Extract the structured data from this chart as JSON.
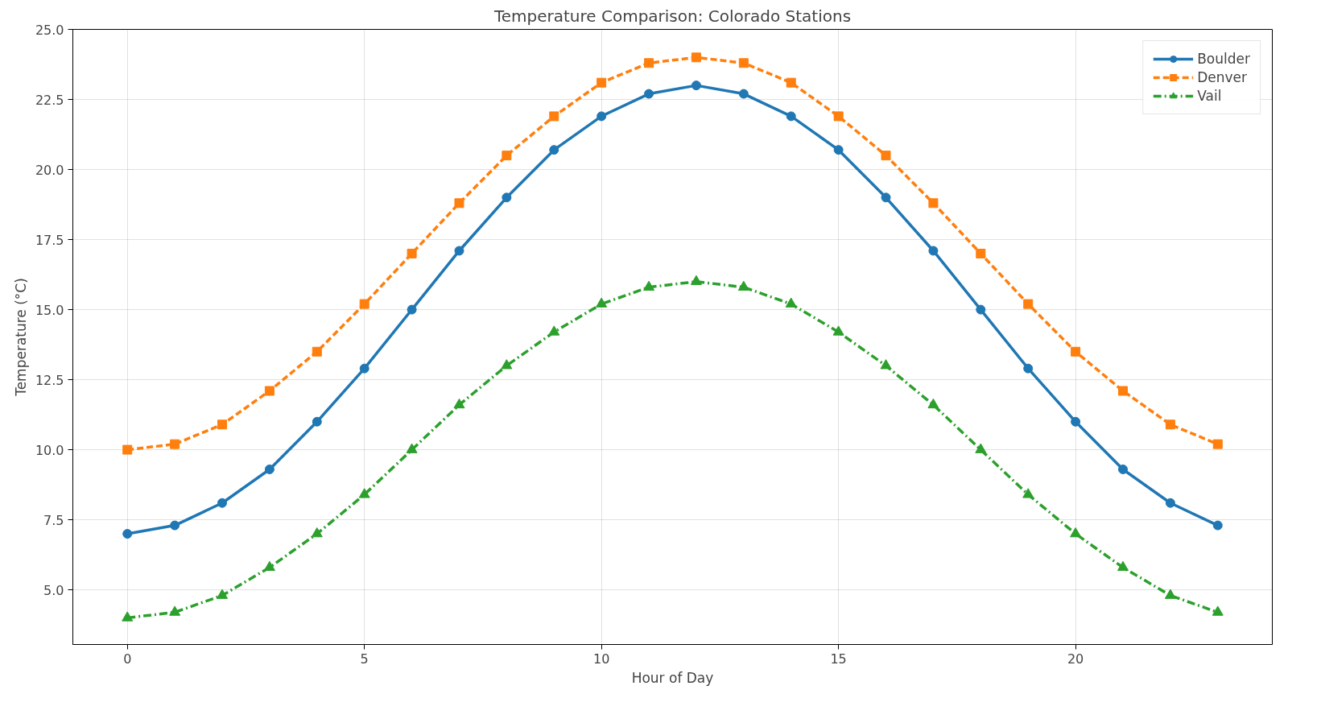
{
  "chart_data": {
    "type": "line",
    "title": "Temperature Comparison: Colorado Stations",
    "xlabel": "Hour of Day",
    "ylabel": "Temperature (°C)",
    "x": [
      0,
      1,
      2,
      3,
      4,
      5,
      6,
      7,
      8,
      9,
      10,
      11,
      12,
      13,
      14,
      15,
      16,
      17,
      18,
      19,
      20,
      21,
      22,
      23
    ],
    "series": [
      {
        "name": "Boulder",
        "color": "#1f77b4",
        "marker": "circle",
        "line_style": "solid",
        "values": [
          7,
          7.3,
          8.1,
          9.3,
          11,
          12.9,
          15,
          17.1,
          19,
          20.7,
          21.9,
          22.7,
          23,
          22.7,
          21.9,
          20.7,
          19,
          17.1,
          15,
          12.9,
          11,
          9.3,
          8.1,
          7.3
        ]
      },
      {
        "name": "Denver",
        "color": "#ff7f0e",
        "marker": "square",
        "line_style": "dashed",
        "values": [
          10,
          10.2,
          10.9,
          12.1,
          13.5,
          15.2,
          17,
          18.8,
          20.5,
          21.9,
          23.1,
          23.8,
          24,
          23.8,
          23.1,
          21.9,
          20.5,
          18.8,
          17,
          15.2,
          13.5,
          12.1,
          10.9,
          10.2
        ]
      },
      {
        "name": "Vail",
        "color": "#2ca02c",
        "marker": "triangle",
        "line_style": "dashdot",
        "values": [
          4,
          4.2,
          4.8,
          5.8,
          7,
          8.4,
          10,
          11.6,
          13,
          14.2,
          15.2,
          15.8,
          16,
          15.8,
          15.2,
          14.2,
          13,
          11.6,
          10,
          8.4,
          7,
          5.8,
          4.8,
          4.2
        ]
      }
    ],
    "xlim": [
      -1.15,
      24.15
    ],
    "ylim": [
      3.05,
      25
    ],
    "xticks": [
      0,
      5,
      10,
      15,
      20
    ],
    "yticks": [
      {
        "value": 5,
        "label": "5.0"
      },
      {
        "value": 7.5,
        "label": "7.5"
      },
      {
        "value": 10,
        "label": "10.0"
      },
      {
        "value": 12.5,
        "label": "12.5"
      },
      {
        "value": 15,
        "label": "15.0"
      },
      {
        "value": 17.5,
        "label": "17.5"
      },
      {
        "value": 20,
        "label": "20.0"
      },
      {
        "value": 22.5,
        "label": "22.5"
      },
      {
        "value": 25,
        "label": "25.0"
      }
    ],
    "grid": true,
    "legend": "top right"
  }
}
